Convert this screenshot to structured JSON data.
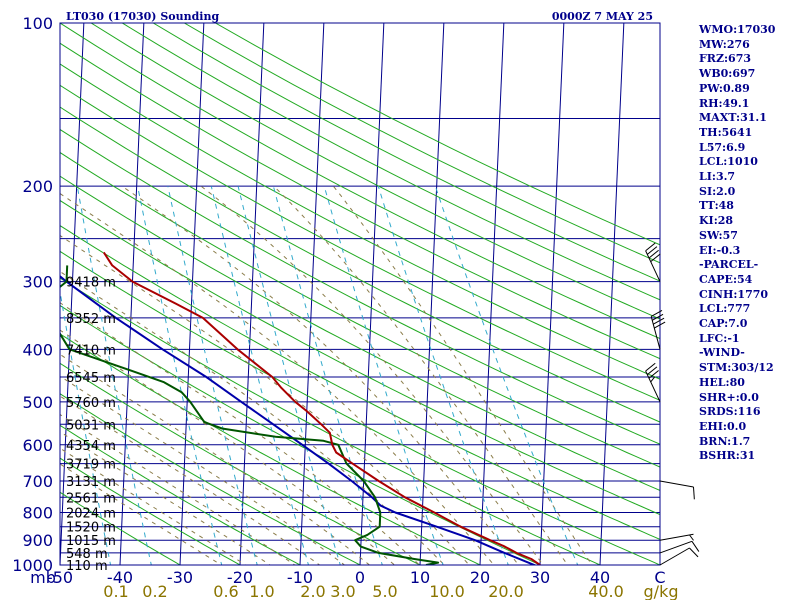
{
  "header": {
    "title": "LT030 (17030) Sounding",
    "time": "0000Z  7 MAY 25"
  },
  "indices": [
    "WMO:17030",
    "MW:276",
    "FRZ:673",
    "WB0:697",
    "PW:0.89",
    "RH:49.1",
    "MAXT:31.1",
    "TH:5641",
    "L57:6.9",
    "LCL:1010",
    "LI:3.7",
    "SI:2.0",
    "TT:48",
    "KI:28",
    "SW:57",
    "EI:-0.3",
    "-PARCEL-",
    "CAPE:54",
    "CINH:1770",
    "LCL:777",
    "CAP:7.0",
    "LFC:-1",
    "-WIND-",
    "STM:303/12",
    "HEL:80",
    "SHR+:0.0",
    "SRDS:116",
    "EHI:0.0",
    "BRN:1.7",
    "BSHR:31"
  ],
  "colors": {
    "frame": "#00008b",
    "isobar": "#00008b",
    "isotherm": "#00008b",
    "dry_adiabat": "#22aa22",
    "moist_adiabat": "#8b7d4a",
    "mixing_ratio": "#33aacc",
    "temperature": "#aa0000",
    "dewpoint": "#005500",
    "parcel": "#0000aa",
    "wind_barb": "#000000",
    "header_text": "#00008b",
    "mixing_ratio_text": "#8b7500"
  },
  "chart_data": {
    "type": "skew-t log-p sounding",
    "pressure_unit": "mb",
    "temperature_unit": "C",
    "mixing_ratio_unit": "g/kg",
    "pressure_range": [
      1000,
      100
    ],
    "temperature_range": [
      -50,
      50
    ],
    "isobars_mb": [
      1000,
      950,
      900,
      850,
      800,
      750,
      700,
      650,
      600,
      550,
      500,
      450,
      400,
      350,
      300,
      250,
      200,
      150,
      100
    ],
    "isobar_labels": [
      "100",
      "200",
      "300",
      "400",
      "500",
      "600",
      "700",
      "800",
      "900",
      "1000"
    ],
    "temperature_tick_labels": [
      "-50",
      "-40",
      "-30",
      "-20",
      "-10",
      "0",
      "10",
      "20",
      "30",
      "40",
      "C"
    ],
    "mixing_ratio_labels": [
      "0.1",
      "0.2",
      "0.6",
      "1.0",
      "2.0",
      "3.0",
      "5.0",
      "10.0",
      "20.0",
      "40.0"
    ],
    "pressure_axis_label": "mb",
    "mixing_ratio_axis_label": "g/kg",
    "height_labels": [
      {
        "p": 300,
        "text": "9418 m"
      },
      {
        "p": 350,
        "text": "8352 m"
      },
      {
        "p": 400,
        "text": "7410 m"
      },
      {
        "p": 450,
        "text": "6545 m"
      },
      {
        "p": 500,
        "text": "5760 m"
      },
      {
        "p": 550,
        "text": "5031 m"
      },
      {
        "p": 600,
        "text": "4354 m"
      },
      {
        "p": 650,
        "text": "3719 m"
      },
      {
        "p": 700,
        "text": "3131 m"
      },
      {
        "p": 750,
        "text": "2561 m"
      },
      {
        "p": 800,
        "text": "2024 m"
      },
      {
        "p": 850,
        "text": "1520 m"
      },
      {
        "p": 900,
        "text": "1015 m"
      },
      {
        "p": 950,
        "text": "548 m"
      },
      {
        "p": 1000,
        "text": "110 m"
      }
    ],
    "temperature_profile": [
      {
        "p": 1015,
        "t": 30.5
      },
      {
        "p": 1000,
        "t": 30.0
      },
      {
        "p": 975,
        "t": 28.5
      },
      {
        "p": 950,
        "t": 26.0
      },
      {
        "p": 925,
        "t": 24.0
      },
      {
        "p": 900,
        "t": 21.5
      },
      {
        "p": 850,
        "t": 16.5
      },
      {
        "p": 800,
        "t": 12.0
      },
      {
        "p": 750,
        "t": 7.0
      },
      {
        "p": 700,
        "t": 2.5
      },
      {
        "p": 650,
        "t": -2.0
      },
      {
        "p": 620,
        "t": -4.8
      },
      {
        "p": 600,
        "t": -5.5
      },
      {
        "p": 570,
        "t": -6.0
      },
      {
        "p": 550,
        "t": -7.5
      },
      {
        "p": 520,
        "t": -10.0
      },
      {
        "p": 500,
        "t": -12.0
      },
      {
        "p": 470,
        "t": -14.5
      },
      {
        "p": 450,
        "t": -16.0
      },
      {
        "p": 400,
        "t": -22.0
      },
      {
        "p": 350,
        "t": -28.0
      },
      {
        "p": 330,
        "t": -32.5
      },
      {
        "p": 300,
        "t": -40.0
      },
      {
        "p": 280,
        "t": -43.5
      },
      {
        "p": 265,
        "t": -45.0
      }
    ],
    "dewpoint_profile": [
      {
        "p": 1000,
        "td": 11.0
      },
      {
        "p": 990,
        "td": 13.0
      },
      {
        "p": 975,
        "td": 9.0
      },
      {
        "p": 950,
        "td": 3.0
      },
      {
        "p": 925,
        "td": 0.0
      },
      {
        "p": 900,
        "td": -1.0
      },
      {
        "p": 880,
        "td": 1.0
      },
      {
        "p": 850,
        "td": 3.0
      },
      {
        "p": 800,
        "td": 3.0
      },
      {
        "p": 750,
        "td": 2.0
      },
      {
        "p": 700,
        "td": 0.0
      },
      {
        "p": 650,
        "td": -3.0
      },
      {
        "p": 600,
        "td": -4.5
      },
      {
        "p": 590,
        "td": -7.0
      },
      {
        "p": 580,
        "td": -15.0
      },
      {
        "p": 560,
        "td": -24.0
      },
      {
        "p": 545,
        "td": -27.0
      },
      {
        "p": 500,
        "td": -29.5
      },
      {
        "p": 480,
        "td": -31.0
      },
      {
        "p": 460,
        "td": -34.0
      },
      {
        "p": 440,
        "td": -39.0
      },
      {
        "p": 400,
        "td": -50.0
      },
      {
        "p": 370,
        "td": -52.0
      },
      {
        "p": 340,
        "td": -54.0
      },
      {
        "p": 320,
        "td": -54.0
      },
      {
        "p": 300,
        "td": -51.0
      },
      {
        "p": 280,
        "td": -51.0
      }
    ],
    "parcel_profile": [
      {
        "p": 1010,
        "t": 30.0
      },
      {
        "p": 950,
        "t": 24.0
      },
      {
        "p": 900,
        "t": 19.0
      },
      {
        "p": 850,
        "t": 12.5
      },
      {
        "p": 800,
        "t": 5.5
      },
      {
        "p": 777,
        "t": 3.0
      },
      {
        "p": 750,
        "t": 1.5
      },
      {
        "p": 700,
        "t": -2.0
      },
      {
        "p": 650,
        "t": -6.0
      },
      {
        "p": 600,
        "t": -10.5
      },
      {
        "p": 550,
        "t": -15.5
      },
      {
        "p": 500,
        "t": -21.0
      },
      {
        "p": 450,
        "t": -27.0
      },
      {
        "p": 400,
        "t": -34.5
      },
      {
        "p": 350,
        "t": -42.5
      },
      {
        "p": 300,
        "t": -51.0
      },
      {
        "p": 250,
        "t": -60.0
      },
      {
        "p": 200,
        "t": -69.0
      },
      {
        "p": 150,
        "t": -79.0
      },
      {
        "p": 120,
        "t": -86.0
      }
    ],
    "wind_barbs": [
      {
        "p": 1000,
        "dir": 60,
        "speed": 10
      },
      {
        "p": 950,
        "dir": 70,
        "speed": 10
      },
      {
        "p": 900,
        "dir": 80,
        "speed": 5
      },
      {
        "p": 700,
        "dir": 100,
        "speed": 10
      },
      {
        "p": 500,
        "dir": 335,
        "speed": 35
      },
      {
        "p": 400,
        "dir": 345,
        "speed": 40
      },
      {
        "p": 300,
        "dir": 335,
        "speed": 40
      }
    ]
  }
}
